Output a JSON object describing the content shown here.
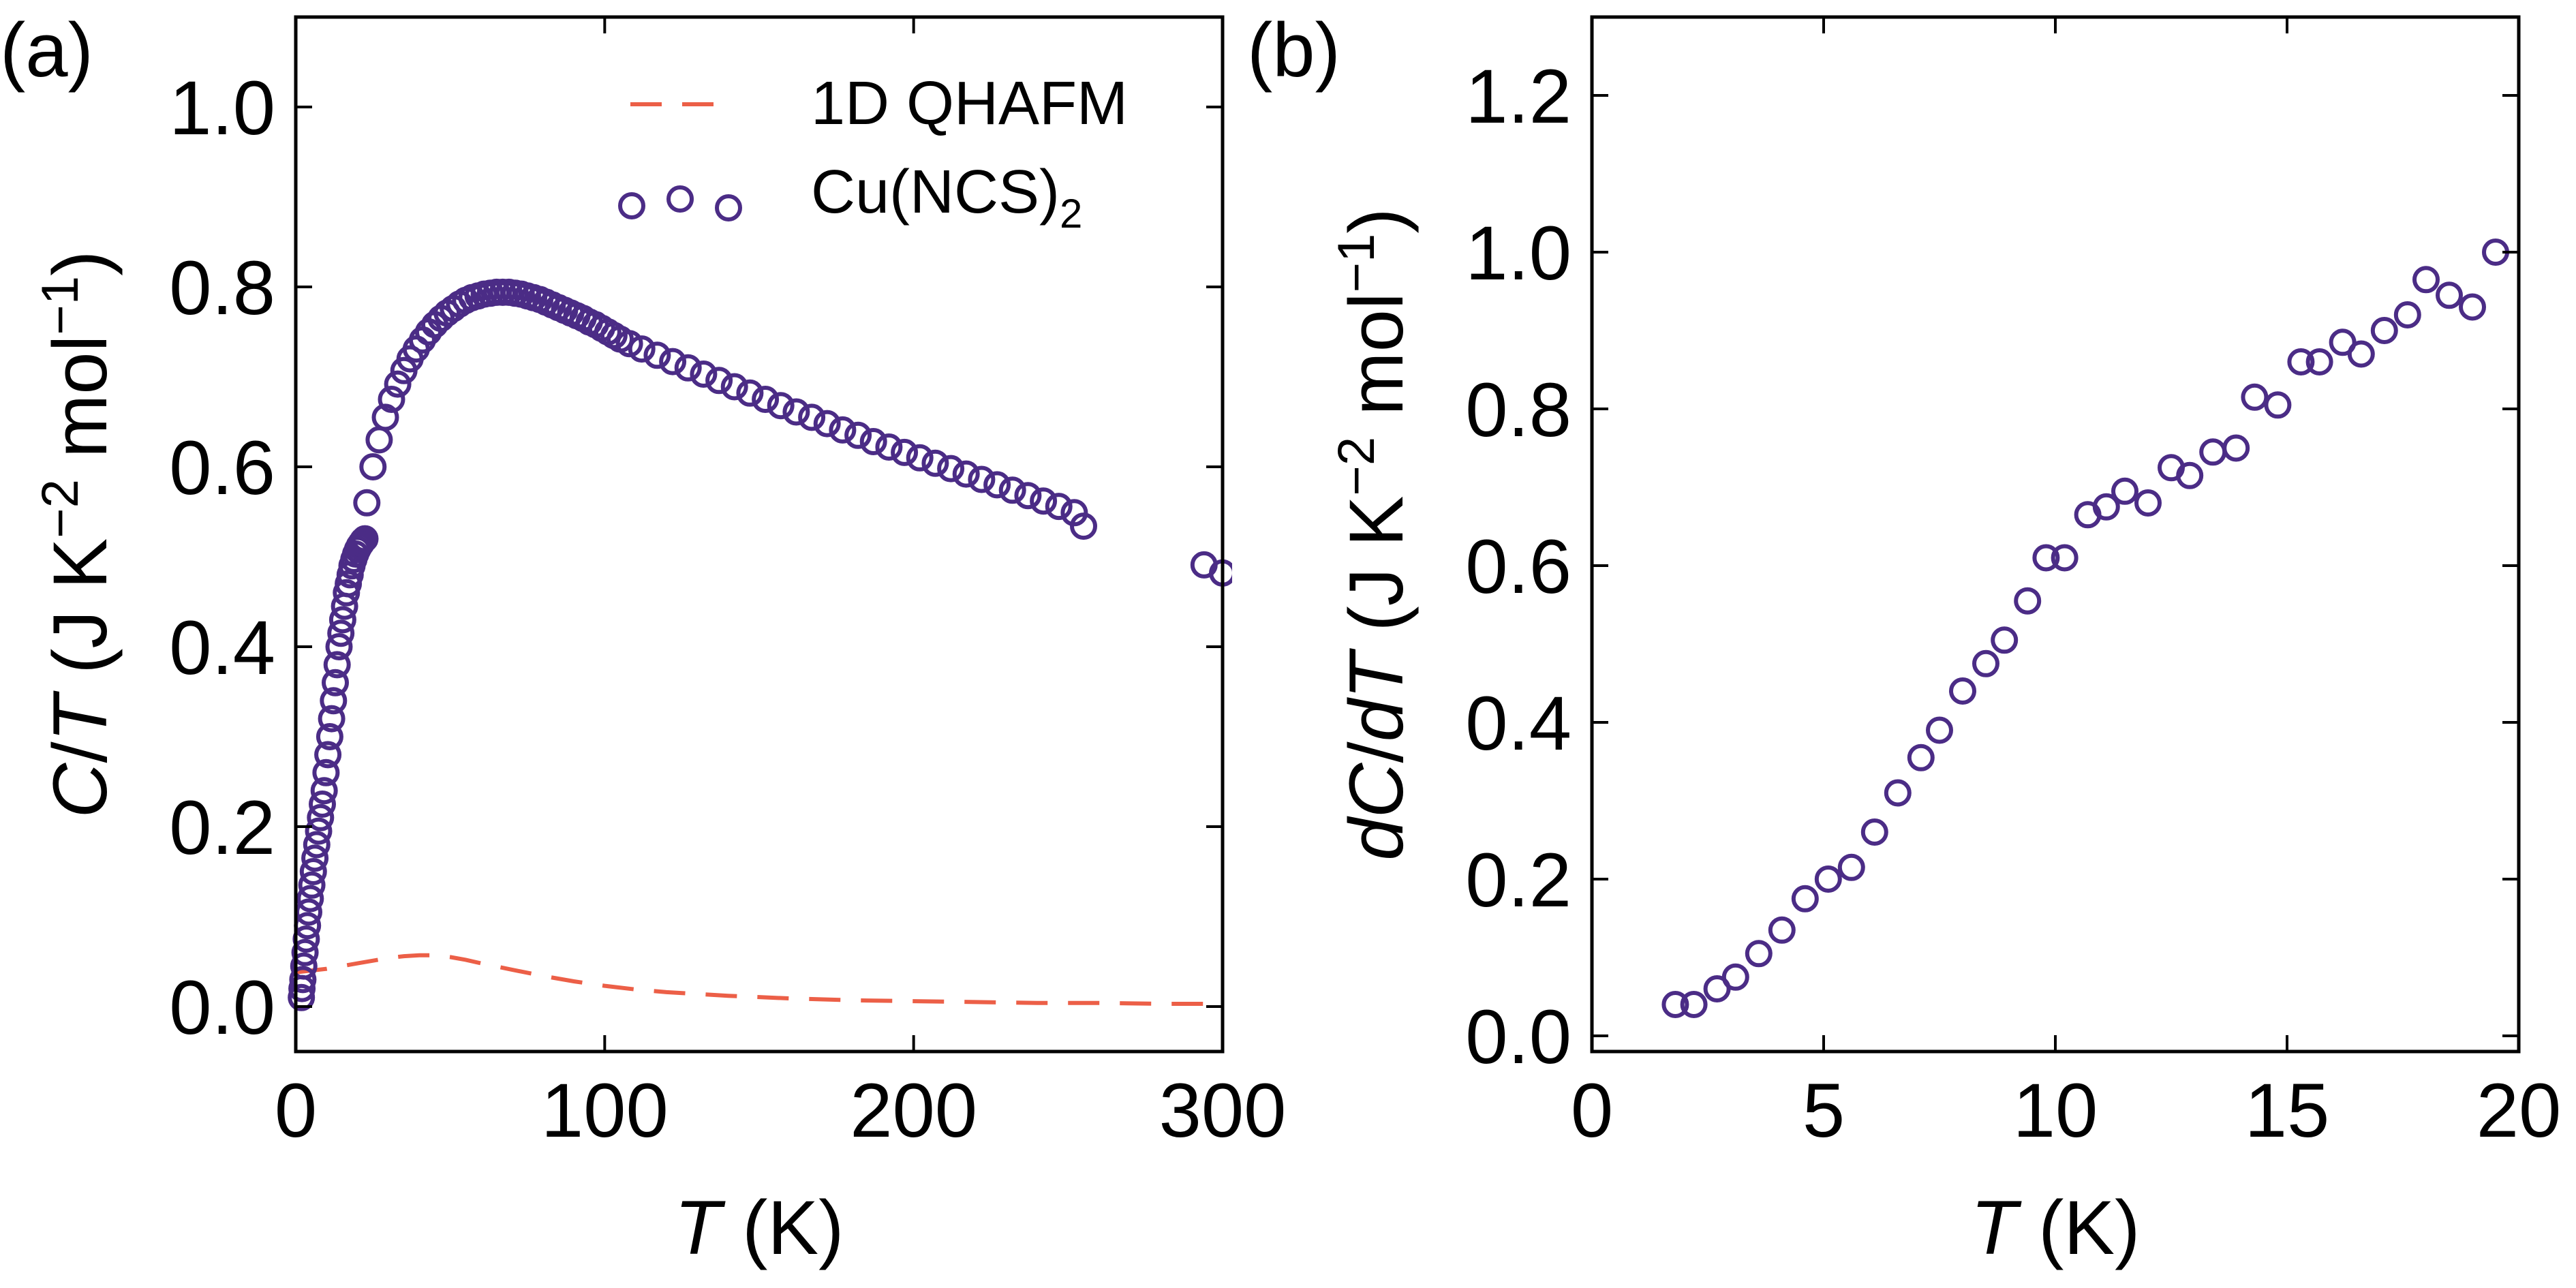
{
  "colors": {
    "points": "#4b2c86",
    "model": "#ec5f47",
    "axes": "#000000"
  },
  "chart_data": [
    {
      "type": "scatter",
      "panel_label": "(a)",
      "xlabel_var": "T",
      "xlabel_unit": " (K)",
      "ylabel_var1": "C",
      "ylabel_sep": "/",
      "ylabel_var2": "T",
      "ylabel_unit1": " (J K",
      "ylabel_exp1": "−2",
      "ylabel_unit2": " mol",
      "ylabel_exp2": "−1",
      "ylabel_close": ")",
      "xlim": [
        0,
        300
      ],
      "ylim": [
        -0.05,
        1.1
      ],
      "xticks": [
        0,
        100,
        200,
        300
      ],
      "xtick_labels": [
        "0",
        "100",
        "200",
        "300"
      ],
      "yticks": [
        0.0,
        0.2,
        0.4,
        0.6,
        0.8,
        1.0
      ],
      "ytick_labels": [
        "0.0",
        "0.2",
        "0.4",
        "0.6",
        "0.8",
        "1.0"
      ],
      "legend": {
        "placement": "top-right",
        "model_label": "1D QHAFM",
        "data_label_base": "Cu(NCS)",
        "data_label_sub": "2"
      },
      "series": [
        {
          "name": "Cu(NCS)2",
          "style": "open-circles",
          "x": [
            1.8,
            2.0,
            2.3,
            2.6,
            3.0,
            3.4,
            3.8,
            4.2,
            4.7,
            5.2,
            5.7,
            6.2,
            6.8,
            7.4,
            8.0,
            8.6,
            9.2,
            9.8,
            10.4,
            11.0,
            11.6,
            12.2,
            12.8,
            13.4,
            14.0,
            14.6,
            15.2,
            15.8,
            16.4,
            17.0,
            17.6,
            18.2,
            18.8,
            19.4,
            20.0,
            20.6,
            21.2,
            21.8,
            22.4,
            23.0,
            25.0,
            27.0,
            29.0,
            31.0,
            33.0,
            35.0,
            37.0,
            39.0,
            41.0,
            43.0,
            45.0,
            47.0,
            49.0,
            51.0,
            53.0,
            55.0,
            57.0,
            59.0,
            61.0,
            63.0,
            65.0,
            67.0,
            69.0,
            71.0,
            73.0,
            75.0,
            77.0,
            79.0,
            81.0,
            83.0,
            85.0,
            87.0,
            89.0,
            91.0,
            93.0,
            95.0,
            97.0,
            99.0,
            101.0,
            103.0,
            105.0,
            108.0,
            112.0,
            117.0,
            122.0,
            127.0,
            132.0,
            137.0,
            142.0,
            147.0,
            152.0,
            157.0,
            162.0,
            167.0,
            172.0,
            177.0,
            182.0,
            187.0,
            192.0,
            197.0,
            202.0,
            207.0,
            212.0,
            217.0,
            222.0,
            227.0,
            232.0,
            237.0,
            242.0,
            247.0,
            252.0,
            255.0,
            294.0,
            300.0
          ],
          "y": [
            0.01,
            0.02,
            0.03,
            0.045,
            0.06,
            0.075,
            0.09,
            0.105,
            0.12,
            0.135,
            0.15,
            0.165,
            0.18,
            0.195,
            0.21,
            0.225,
            0.24,
            0.26,
            0.28,
            0.3,
            0.32,
            0.34,
            0.36,
            0.38,
            0.4,
            0.415,
            0.43,
            0.445,
            0.46,
            0.47,
            0.48,
            0.49,
            0.497,
            0.503,
            0.508,
            0.512,
            0.515,
            0.518,
            0.52,
            0.56,
            0.6,
            0.63,
            0.655,
            0.675,
            0.692,
            0.707,
            0.72,
            0.731,
            0.741,
            0.75,
            0.758,
            0.765,
            0.771,
            0.776,
            0.781,
            0.785,
            0.788,
            0.79,
            0.792,
            0.793,
            0.794,
            0.794,
            0.794,
            0.793,
            0.792,
            0.79,
            0.788,
            0.786,
            0.783,
            0.78,
            0.777,
            0.774,
            0.771,
            0.768,
            0.765,
            0.761,
            0.758,
            0.754,
            0.75,
            0.746,
            0.742,
            0.737,
            0.731,
            0.724,
            0.717,
            0.71,
            0.703,
            0.696,
            0.689,
            0.682,
            0.675,
            0.668,
            0.661,
            0.655,
            0.648,
            0.641,
            0.635,
            0.628,
            0.622,
            0.616,
            0.61,
            0.604,
            0.598,
            0.592,
            0.586,
            0.58,
            0.574,
            0.568,
            0.562,
            0.556,
            0.549,
            0.534,
            0.491,
            0.482
          ]
        },
        {
          "name": "1D QHAFM",
          "style": "dashed-line",
          "x": [
            0,
            5,
            10,
            15,
            20,
            25,
            30,
            35,
            40,
            45,
            50,
            55,
            60,
            70,
            80,
            90,
            100,
            110,
            120,
            140,
            160,
            180,
            200,
            220,
            240,
            260,
            280,
            300
          ],
          "y": [
            0.038,
            0.04,
            0.042,
            0.045,
            0.048,
            0.051,
            0.054,
            0.056,
            0.057,
            0.057,
            0.055,
            0.052,
            0.048,
            0.041,
            0.034,
            0.028,
            0.023,
            0.019,
            0.016,
            0.012,
            0.009,
            0.007,
            0.006,
            0.005,
            0.004,
            0.004,
            0.003,
            0.003
          ]
        }
      ]
    },
    {
      "type": "scatter",
      "panel_label": "(b)",
      "xlabel_var": "T",
      "xlabel_unit": " (K)",
      "ylabel_var1": "dC",
      "ylabel_sep": "/",
      "ylabel_var2": "dT",
      "ylabel_unit1": " (J K",
      "ylabel_exp1": "−2",
      "ylabel_unit2": " mol",
      "ylabel_exp2": "−1",
      "ylabel_close": ")",
      "xlim": [
        0,
        20
      ],
      "ylim": [
        -0.02,
        1.3
      ],
      "xticks": [
        0,
        5,
        10,
        15,
        20
      ],
      "xtick_labels": [
        "0",
        "5",
        "10",
        "15",
        "20"
      ],
      "yticks": [
        0.0,
        0.2,
        0.4,
        0.6,
        0.8,
        1.0,
        1.2
      ],
      "ytick_labels": [
        "0.0",
        "0.2",
        "0.4",
        "0.6",
        "0.8",
        "1.0",
        "1.2"
      ],
      "series": [
        {
          "name": "Cu(NCS)2",
          "style": "open-circles",
          "x": [
            1.8,
            2.2,
            2.7,
            3.1,
            3.6,
            4.1,
            4.6,
            5.1,
            5.6,
            6.1,
            6.6,
            7.1,
            7.5,
            8.0,
            8.5,
            8.9,
            9.4,
            9.8,
            10.2,
            10.7,
            11.1,
            11.5,
            12.0,
            12.5,
            12.9,
            13.4,
            13.9,
            14.3,
            14.8,
            15.3,
            15.7,
            16.2,
            16.6,
            17.1,
            17.6,
            18.0,
            18.5,
            19.0,
            19.5
          ],
          "y": [
            0.04,
            0.04,
            0.06,
            0.075,
            0.105,
            0.135,
            0.175,
            0.2,
            0.215,
            0.26,
            0.31,
            0.355,
            0.39,
            0.44,
            0.475,
            0.505,
            0.555,
            0.61,
            0.61,
            0.665,
            0.675,
            0.695,
            0.68,
            0.725,
            0.715,
            0.745,
            0.75,
            0.815,
            0.805,
            0.86,
            0.86,
            0.885,
            0.87,
            0.9,
            0.92,
            0.965,
            0.945,
            0.93,
            1.0
          ]
        }
      ]
    }
  ]
}
